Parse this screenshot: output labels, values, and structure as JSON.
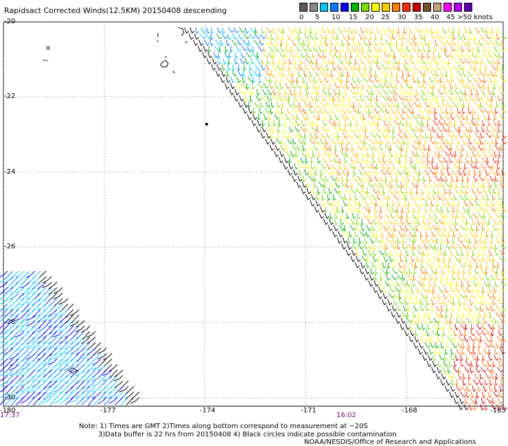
{
  "title": "Rapidsact Corrected Winds(12.5KM) 20150408 descending",
  "legend": {
    "colors": [
      "#5a5a5a",
      "#8a8a8a",
      "#00c8ff",
      "#0078ff",
      "#0000ff",
      "#00b400",
      "#78dc00",
      "#ffff00",
      "#ffc800",
      "#ff7800",
      "#ff2800",
      "#c80000",
      "#785028",
      "#c8a078",
      "#ff00ff",
      "#b400ff",
      "#6400b4"
    ],
    "labels": [
      "0",
      "5",
      "10",
      "15",
      "20",
      "25",
      "30",
      "35",
      "40",
      "45",
      ">50 knots"
    ]
  },
  "axes": {
    "lat_labels": [
      "-20",
      "-22",
      "-24",
      "-26",
      "-28",
      "-30"
    ],
    "lon_labels": [
      "-180",
      "-177",
      "-174",
      "-171",
      "-168",
      "-165"
    ],
    "lat_range": [
      -30,
      -20
    ],
    "lon_range": [
      -180,
      -165
    ]
  },
  "time_labels": [
    "17:37",
    "16:02"
  ],
  "notes": {
    "line1": "Note: 1) Times are GMT 2)Times along bottom correspond to measurement at ~20S",
    "line2": "3)Data buffer is 22 hrs from 20150408 4) Black circles indicate possible contamination",
    "line3": "NOAA/NESDIS/Office of Research and Applications"
  }
}
